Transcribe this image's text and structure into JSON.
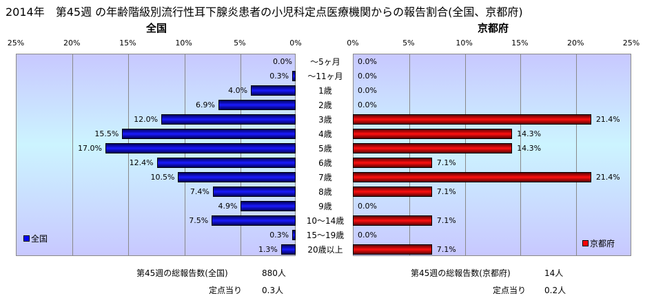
{
  "title": "2014年　第45週 の年齢階級別流行性耳下腺炎患者の小児科定点医療機関からの報告割合(全国、京都府)",
  "chart_data": {
    "type": "bar",
    "categories": [
      "～5ヶ月",
      "～11ヶ月",
      "1歳",
      "2歳",
      "3歳",
      "4歳",
      "5歳",
      "6歳",
      "7歳",
      "8歳",
      "9歳",
      "10～14歳",
      "15～19歳",
      "20歳以上"
    ],
    "series": [
      {
        "name": "全国",
        "title": "全国",
        "color": "#0000ff",
        "values": [
          0.0,
          0.3,
          4.0,
          6.9,
          12.0,
          15.5,
          17.0,
          12.4,
          10.5,
          7.4,
          4.9,
          7.5,
          0.3,
          1.3
        ]
      },
      {
        "name": "京都府",
        "title": "京都府",
        "color": "#ff0000",
        "values": [
          0.0,
          0.0,
          0.0,
          0.0,
          21.4,
          14.3,
          14.3,
          7.1,
          21.4,
          7.1,
          0.0,
          7.1,
          0.0,
          7.1
        ]
      }
    ],
    "xlim": [
      0,
      25
    ],
    "ticks": [
      "0%",
      "5%",
      "10%",
      "15%",
      "20%",
      "25%"
    ],
    "value_format": "%"
  },
  "footer": {
    "left_total_label": "第45週の総報告数(全国)",
    "left_total_value": "880人",
    "left_per_label": "定点当り",
    "left_per_value": "0.3人",
    "right_total_label": "第45週の総報告数(京都府)",
    "right_total_value": "14人",
    "right_per_label": "定点当り",
    "right_per_value": "0.2人"
  }
}
